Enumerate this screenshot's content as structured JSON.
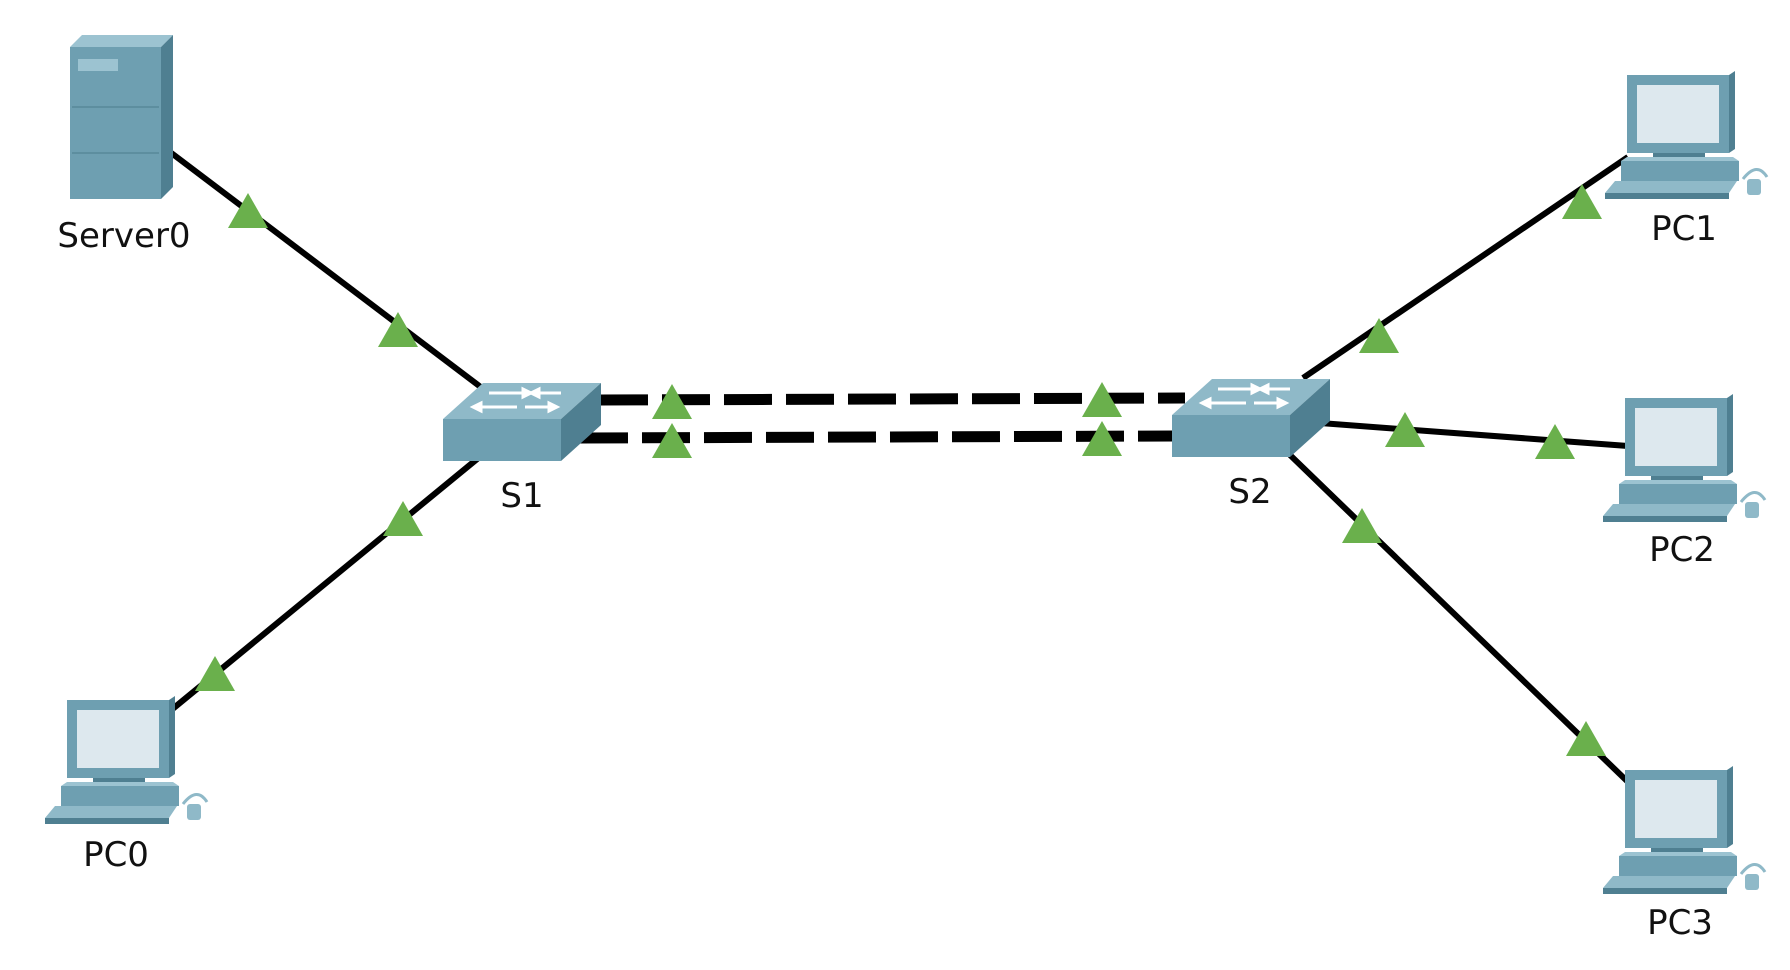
{
  "nodes": {
    "server0": {
      "label": "Server0",
      "kind": "server"
    },
    "s1": {
      "label": "S1",
      "kind": "switch"
    },
    "s2": {
      "label": "S2",
      "kind": "switch"
    },
    "pc0": {
      "label": "PC0",
      "kind": "pc"
    },
    "pc1": {
      "label": "PC1",
      "kind": "pc"
    },
    "pc2": {
      "label": "PC2",
      "kind": "pc"
    },
    "pc3": {
      "label": "PC3",
      "kind": "pc"
    }
  },
  "links": [
    {
      "from": "Server0",
      "to": "S1",
      "style": "solid",
      "status": "up"
    },
    {
      "from": "PC0",
      "to": "S1",
      "style": "solid",
      "status": "up"
    },
    {
      "from": "S1",
      "to": "S2",
      "style": "dashed",
      "status": "up"
    },
    {
      "from": "S1",
      "to": "S2",
      "style": "dashed",
      "status": "up"
    },
    {
      "from": "S2",
      "to": "PC1",
      "style": "solid",
      "status": "up"
    },
    {
      "from": "S2",
      "to": "PC2",
      "style": "solid",
      "status": "up"
    },
    {
      "from": "S2",
      "to": "PC3",
      "style": "solid",
      "status": "up"
    }
  ],
  "colors": {
    "link": "#000000",
    "link_up_indicator": "#6ab04c",
    "device_body": "#6e9fb1",
    "device_dark": "#4f7f91",
    "device_light": "#9cc3d1",
    "screen": "#dde8ee"
  },
  "icons": {
    "server": "server-icon",
    "switch": "switch-icon",
    "pc": "pc-icon",
    "link_indicator": "triangle-up-icon"
  }
}
